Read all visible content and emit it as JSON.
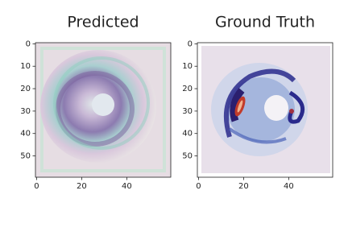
{
  "chart_data": [
    {
      "type": "image",
      "title": "Predicted",
      "xlim": [
        -0.5,
        59.5
      ],
      "ylim": [
        59.5,
        -0.5
      ],
      "xticks": [
        0,
        20,
        40
      ],
      "yticks": [
        0,
        10,
        20,
        30,
        40,
        50
      ]
    },
    {
      "type": "image",
      "title": "Ground Truth",
      "xlim": [
        -0.5,
        59.5
      ],
      "ylim": [
        59.5,
        -0.5
      ],
      "xticks": [
        0,
        20,
        40
      ],
      "yticks": [
        0,
        10,
        20,
        30,
        40,
        50
      ]
    }
  ]
}
